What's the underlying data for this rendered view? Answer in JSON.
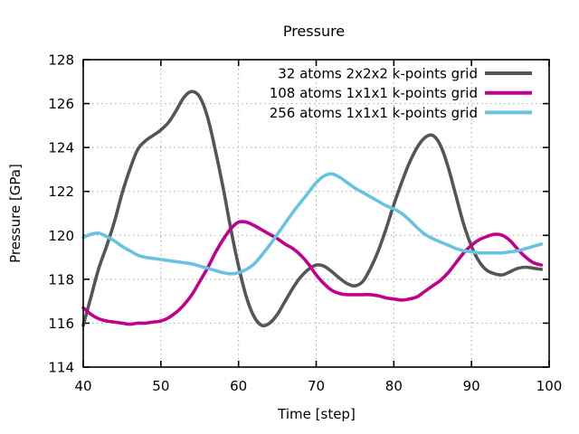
{
  "chart_data": {
    "type": "line",
    "title": "Pressure",
    "xlabel": "Time [step]",
    "ylabel": "Pressure [GPa]",
    "xlim": [
      40,
      100
    ],
    "ylim": [
      114,
      128
    ],
    "xticks": [
      40,
      50,
      60,
      70,
      80,
      90,
      100
    ],
    "yticks": [
      114,
      116,
      118,
      120,
      122,
      124,
      126,
      128
    ],
    "grid": true,
    "legend_position": "top-right-inside",
    "x_start": 40,
    "x_step": 1,
    "axis_color": "#000000",
    "grid_color": "#a8a8a8",
    "series": [
      {
        "name": "32 atoms 2x2x2 k-points grid",
        "color": "#555555",
        "values": [
          115.9,
          117.2,
          118.5,
          119.5,
          120.6,
          121.9,
          123.0,
          123.9,
          124.3,
          124.55,
          124.8,
          125.15,
          125.7,
          126.3,
          126.55,
          126.3,
          125.4,
          123.9,
          122.2,
          120.3,
          118.6,
          117.2,
          116.3,
          115.9,
          116.0,
          116.4,
          117.0,
          117.6,
          118.1,
          118.45,
          118.65,
          118.6,
          118.35,
          118.05,
          117.8,
          117.7,
          117.9,
          118.5,
          119.3,
          120.3,
          121.4,
          122.4,
          123.3,
          124.0,
          124.45,
          124.55,
          124.1,
          123.1,
          121.8,
          120.5,
          119.5,
          118.8,
          118.4,
          118.25,
          118.2,
          118.35,
          118.5,
          118.55,
          118.5,
          118.45
        ]
      },
      {
        "name": "108 atoms 1x1x1 k-points grid",
        "color": "#c2008c",
        "values": [
          116.7,
          116.4,
          116.2,
          116.1,
          116.05,
          116.0,
          115.95,
          116.0,
          116.0,
          116.05,
          116.1,
          116.25,
          116.5,
          116.85,
          117.3,
          117.9,
          118.5,
          119.2,
          119.8,
          120.3,
          120.6,
          120.6,
          120.45,
          120.25,
          120.05,
          119.85,
          119.6,
          119.4,
          119.1,
          118.7,
          118.2,
          117.8,
          117.5,
          117.35,
          117.3,
          117.3,
          117.3,
          117.3,
          117.25,
          117.15,
          117.1,
          117.05,
          117.1,
          117.2,
          117.45,
          117.7,
          117.95,
          118.3,
          118.75,
          119.2,
          119.55,
          119.8,
          119.95,
          120.05,
          120.0,
          119.75,
          119.35,
          119.0,
          118.75,
          118.65
        ]
      },
      {
        "name": "256 atoms 1x1x1 k-points grid",
        "color": "#69c2e4",
        "values": [
          119.9,
          120.05,
          120.1,
          119.95,
          119.75,
          119.5,
          119.3,
          119.1,
          119.0,
          118.95,
          118.9,
          118.85,
          118.8,
          118.75,
          118.7,
          118.6,
          118.5,
          118.4,
          118.3,
          118.25,
          118.3,
          118.45,
          118.7,
          119.1,
          119.55,
          120.05,
          120.55,
          121.05,
          121.5,
          121.95,
          122.4,
          122.7,
          122.8,
          122.65,
          122.4,
          122.15,
          121.95,
          121.75,
          121.55,
          121.35,
          121.2,
          121.0,
          120.7,
          120.35,
          120.05,
          119.85,
          119.7,
          119.55,
          119.4,
          119.3,
          119.25,
          119.2,
          119.2,
          119.2,
          119.2,
          119.25,
          119.3,
          119.4,
          119.5,
          119.6
        ]
      }
    ]
  }
}
